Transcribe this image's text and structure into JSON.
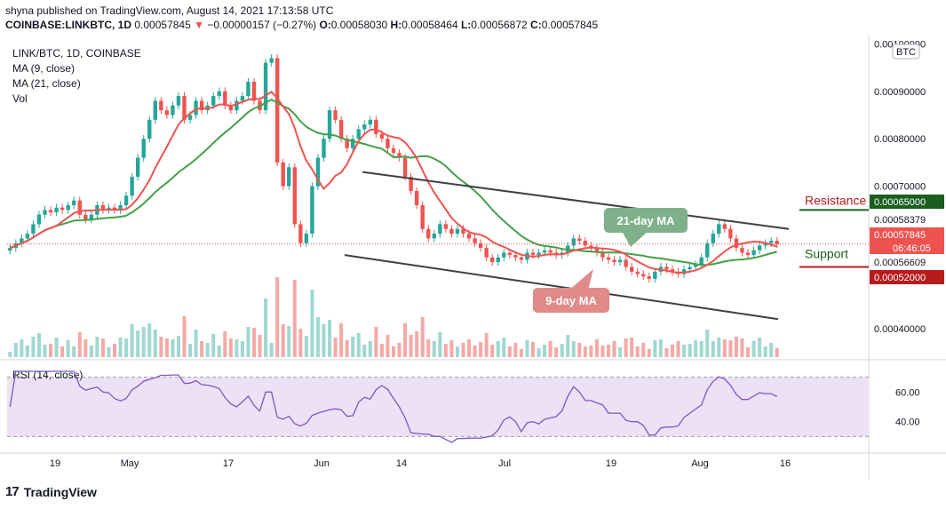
{
  "header": {
    "published": "shyna published on TradingView.com, August 14, 2021 17:13:58 UTC",
    "symbol": "COINBASE:LINKBTC, 1D",
    "last": "0.00057845",
    "change_arrow": "▼",
    "change": "−0.00000157 (−0.27%)",
    "o_label": "O:",
    "o": "0.00058030",
    "h_label": "H:",
    "h": "0.00058464",
    "l_label": "L:",
    "l": "0.00056872",
    "c_label": "C:",
    "c": "0.00057845"
  },
  "legend": {
    "title": "LINK/BTC, 1D, COINBASE",
    "ma9": "MA (9, close)",
    "ma21": "MA (21, close)",
    "vol": "Vol",
    "rsi": "RSI (14, close)"
  },
  "footer": {
    "brand": "TradingView",
    "logo": "17"
  },
  "colors": {
    "up": "#26a69a",
    "down": "#ef5350",
    "ma9": "#ef5350",
    "ma21": "#43a047",
    "channel": "#404040",
    "rsi_line": "#7e57c2",
    "rsi_band": "#ede1f5",
    "resistance_tag": "#1b5e20",
    "support_tag": "#b71c1c"
  },
  "chart_data": {
    "type": "candlestick",
    "currency": "BTC",
    "x_ticks": [
      "19",
      "May",
      "17",
      "Jun",
      "14",
      "Jul",
      "19",
      "Aug",
      "16"
    ],
    "y_ticks": [
      "0.00100000",
      "0.00090000",
      "0.00080000",
      "0.00070000",
      "0.00040000"
    ],
    "ylim": [
      0.00034,
      0.00101
    ],
    "rsi_ticks": [
      "60.00",
      "40.00"
    ],
    "rsi_range": [
      20,
      80
    ],
    "price_tags": {
      "resistance": "0.00065000",
      "high_marker": "0.00058379",
      "last": "0.00057845",
      "countdown": "06:46:05",
      "low_marker": "0.00056609",
      "support": "0.00052000"
    },
    "annotations": {
      "resistance": "Resistance",
      "support": "Support",
      "ma21_callout": "21-day MA",
      "ma9_callout": "9-day MA"
    },
    "closes": [
      0.00057,
      0.00058,
      0.00059,
      0.0006,
      0.00062,
      0.00064,
      0.00065,
      0.000645,
      0.000655,
      0.00065,
      0.00066,
      0.00067,
      0.00064,
      0.00063,
      0.00064,
      0.00066,
      0.00065,
      0.000655,
      0.00065,
      0.00066,
      0.00068,
      0.00072,
      0.00076,
      0.0008,
      0.00084,
      0.00088,
      0.00086,
      0.00085,
      0.00087,
      0.00089,
      0.00084,
      0.00085,
      0.00088,
      0.00086,
      0.00087,
      0.00089,
      0.0009,
      0.00087,
      0.00086,
      0.00088,
      0.00089,
      0.00092,
      0.00088,
      0.00086,
      0.00096,
      0.00097,
      0.00075,
      0.0007,
      0.00074,
      0.00062,
      0.00058,
      0.0006,
      0.0007,
      0.00076,
      0.0008,
      0.00086,
      0.00084,
      0.0008,
      0.00078,
      0.0008,
      0.00082,
      0.00083,
      0.00084,
      0.00081,
      0.0008,
      0.00078,
      0.00077,
      0.00076,
      0.00072,
      0.00069,
      0.00066,
      0.00061,
      0.00059,
      0.0006,
      0.00062,
      0.00061,
      0.0006,
      0.00061,
      0.0006,
      0.00059,
      0.00058,
      0.00057,
      0.00055,
      0.00054,
      0.00055,
      0.00056,
      0.000555,
      0.00055,
      0.000545,
      0.00056,
      0.000555,
      0.00056,
      0.000565,
      0.00056,
      0.000555,
      0.00056,
      0.000575,
      0.00059,
      0.000585,
      0.000575,
      0.00057,
      0.00056,
      0.00055,
      0.000545,
      0.00054,
      0.000545,
      0.00053,
      0.00052,
      0.000515,
      0.00051,
      0.000505,
      0.00052,
      0.00053,
      0.000525,
      0.00052,
      0.000515,
      0.000525,
      0.00053,
      0.000535,
      0.00055,
      0.00058,
      0.0006,
      0.00062,
      0.00061,
      0.00059,
      0.00057,
      0.00056,
      0.000555,
      0.000565,
      0.000575,
      0.00058,
      0.000585,
      0.000578
    ]
  }
}
